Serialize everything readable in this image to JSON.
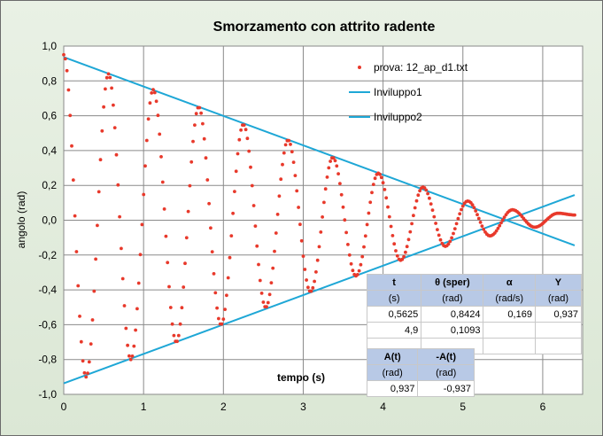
{
  "chart_data": {
    "type": "scatter",
    "title": "Smorzamento  con  attrito radente",
    "xlabel": "tempo (s)",
    "ylabel": "angolo (rad)",
    "xlim": [
      0,
      6.5
    ],
    "ylim": [
      -1.0,
      1.0
    ],
    "x_ticks": [
      "0",
      "1",
      "2",
      "3",
      "4",
      "5",
      "6"
    ],
    "y_ticks": [
      "1,0",
      "0,8",
      "0,6",
      "0,4",
      "0,2",
      "0,0",
      "-0,2",
      "-0,4",
      "-0,6",
      "-0,8",
      "-1,0"
    ],
    "grid": true,
    "legend_position": "top-right",
    "series": [
      {
        "name": "prova: 12_ap_d1.txt",
        "kind": "points",
        "color": "#e8392b",
        "amplitude_start": 0.937,
        "amplitude_decay_per_s": 0.169,
        "period_s": 0.5625,
        "phase_at_zero": "maximum",
        "t_range": [
          0,
          6.4
        ],
        "peaks": [
          {
            "t": 0.0,
            "y": 0.95
          },
          {
            "t": 0.28,
            "y": -0.9
          },
          {
            "t": 0.56,
            "y": 0.84
          },
          {
            "t": 0.84,
            "y": -0.8
          },
          {
            "t": 1.12,
            "y": 0.75
          },
          {
            "t": 1.41,
            "y": -0.7
          },
          {
            "t": 1.69,
            "y": 0.65
          },
          {
            "t": 1.97,
            "y": -0.6
          },
          {
            "t": 2.25,
            "y": 0.55
          },
          {
            "t": 2.53,
            "y": -0.5
          },
          {
            "t": 2.81,
            "y": 0.46
          },
          {
            "t": 3.09,
            "y": -0.41
          },
          {
            "t": 3.37,
            "y": 0.36
          },
          {
            "t": 3.66,
            "y": -0.32
          },
          {
            "t": 3.94,
            "y": 0.27
          },
          {
            "t": 4.22,
            "y": -0.23
          },
          {
            "t": 4.5,
            "y": 0.19
          },
          {
            "t": 4.78,
            "y": -0.15
          },
          {
            "t": 5.06,
            "y": 0.11
          },
          {
            "t": 5.34,
            "y": -0.09
          },
          {
            "t": 5.62,
            "y": 0.06
          },
          {
            "t": 5.9,
            "y": -0.04
          },
          {
            "t": 6.19,
            "y": 0.04
          },
          {
            "t": 6.4,
            "y": 0.03
          }
        ]
      },
      {
        "name": "Inviluppo1",
        "kind": "line",
        "color": "#1ea7d6",
        "x": [
          0,
          6.4
        ],
        "y": [
          0.937,
          -0.1446
        ]
      },
      {
        "name": "Inviluppo2",
        "kind": "line",
        "color": "#1ea7d6",
        "x": [
          0,
          6.4
        ],
        "y": [
          -0.937,
          0.1446
        ]
      }
    ]
  },
  "table1": {
    "headers": [
      "t",
      "θ (sper)",
      "α",
      "Y"
    ],
    "units": [
      "(s)",
      "(rad)",
      "(rad/s)",
      "(rad)"
    ],
    "rows": [
      [
        "0,5625",
        "0,8424",
        "0,169",
        "0,937"
      ],
      [
        "4,9",
        "0,1093",
        "",
        ""
      ]
    ]
  },
  "table2": {
    "headers": [
      "A(t)",
      "-A(t)"
    ],
    "units": [
      "(rad)",
      "(rad)"
    ],
    "rows": [
      [
        "0,937",
        "-0,937"
      ]
    ]
  }
}
